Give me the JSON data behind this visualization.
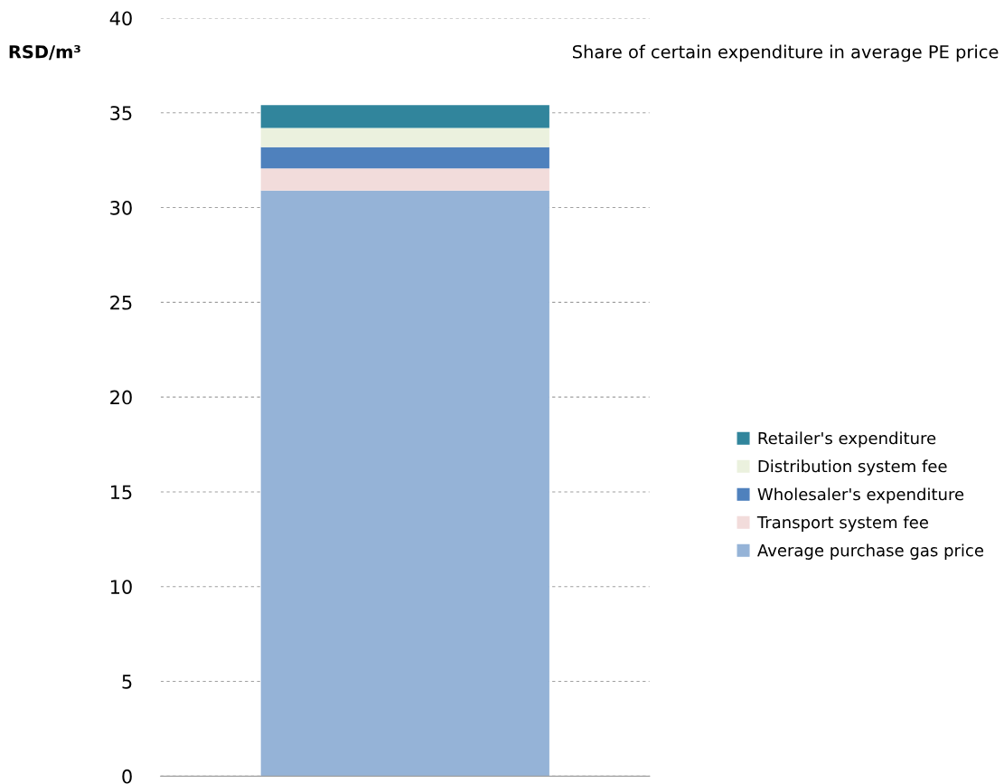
{
  "chart_data": {
    "type": "bar",
    "stacked": true,
    "title": "Share of certain expenditure in average PE price",
    "ylabel": "RSD/m³",
    "categories": [
      null
    ],
    "series": [
      {
        "name": "Average purchase gas price",
        "color": "#95b3d7",
        "values": [
          30.9
        ]
      },
      {
        "name": "Transport system fee",
        "color": "#f2dcdb",
        "values": [
          1.16
        ]
      },
      {
        "name": "Wholesaler's expenditure",
        "color": "#4f81bd",
        "values": [
          1.13
        ]
      },
      {
        "name": "Distribution system fee",
        "color": "#ebf1de",
        "values": [
          1.01
        ]
      },
      {
        "name": "Retailer's expenditure",
        "color": "#31859c",
        "values": [
          1.21
        ]
      }
    ],
    "ylim": [
      0,
      40
    ],
    "yticks": [
      0,
      5,
      10,
      15,
      20,
      25,
      30,
      35,
      40
    ],
    "grid": "y",
    "legend": "right"
  }
}
